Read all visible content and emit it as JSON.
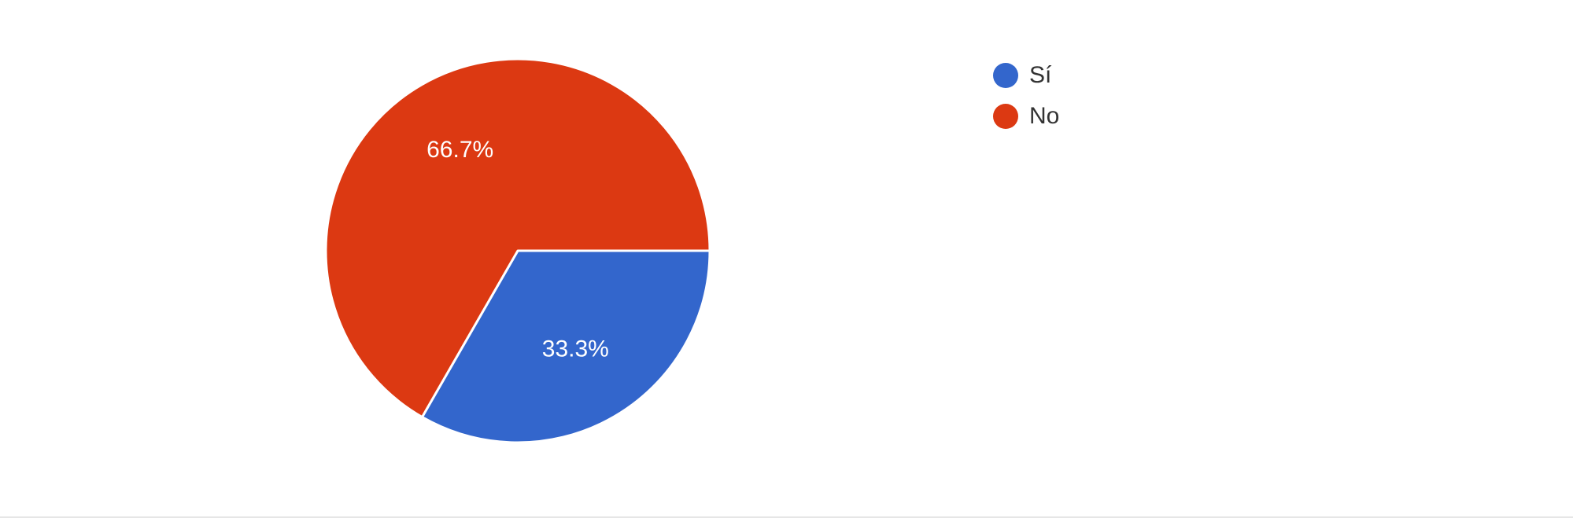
{
  "chart_data": {
    "type": "pie",
    "title": "",
    "slices": [
      {
        "label": "Sí",
        "value": 33.3,
        "display": "33.3%",
        "color": "#3366cc"
      },
      {
        "label": "No",
        "value": 66.7,
        "display": "66.7%",
        "color": "#dc3912"
      }
    ],
    "legend_position": "top-right"
  }
}
